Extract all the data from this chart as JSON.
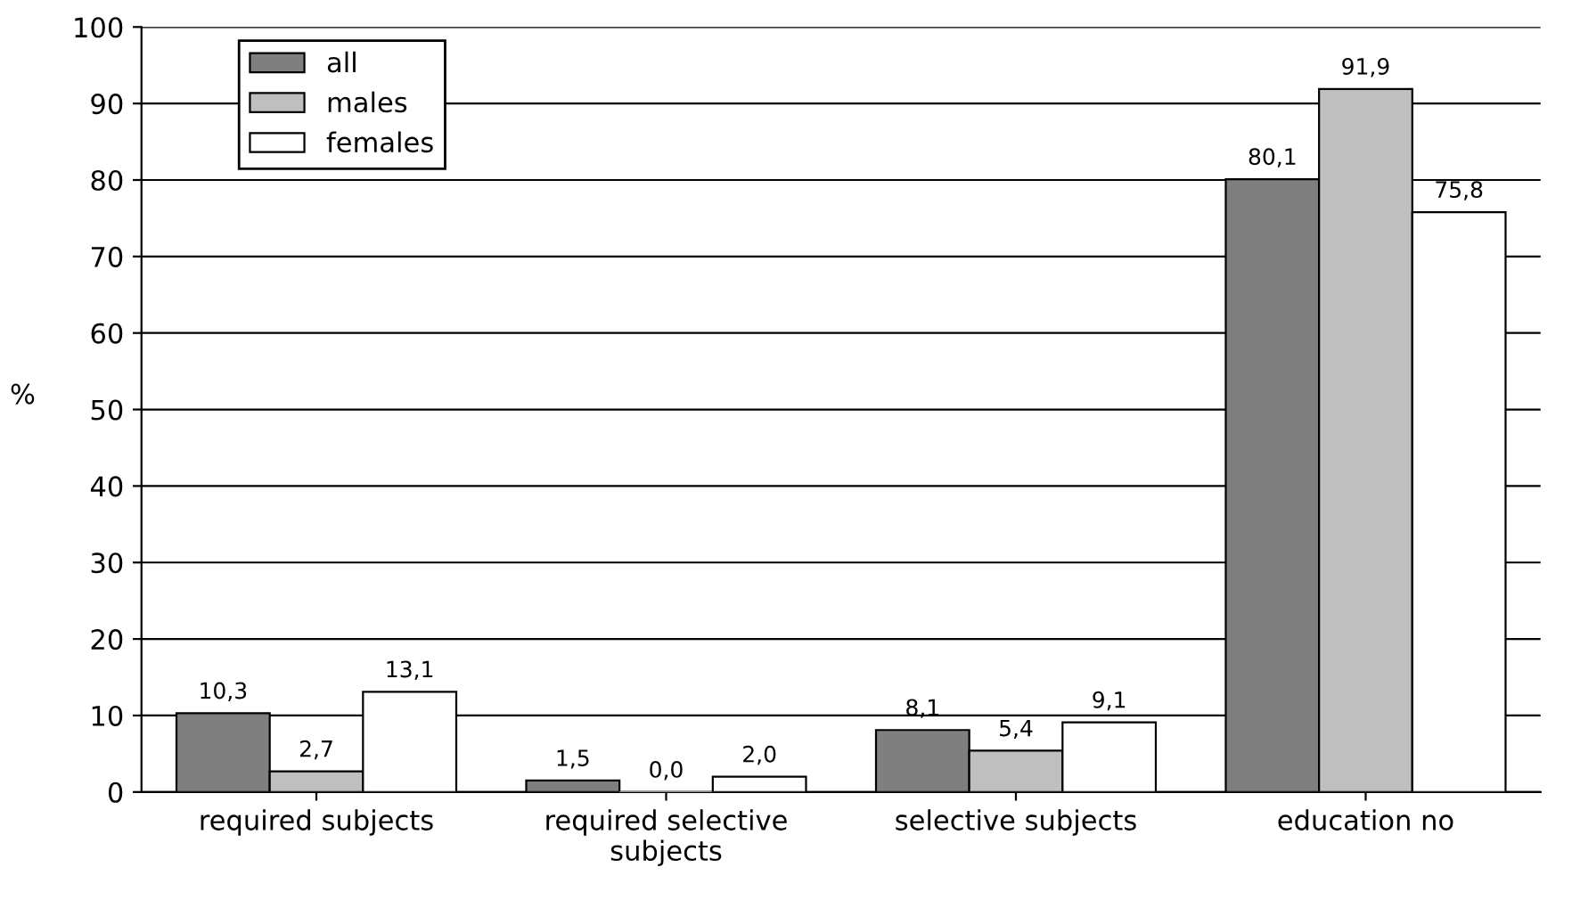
{
  "chart_data": {
    "type": "bar",
    "ylabel": "%",
    "categories": [
      "required subjects",
      "required selective\nsubjects",
      "selective subjects",
      "education no"
    ],
    "series": [
      {
        "name": "all",
        "color": "#7f7f7f",
        "values": [
          10.3,
          1.5,
          8.1,
          80.1
        ],
        "value_labels": [
          "10,3",
          "1,5",
          "8,1",
          "80,1"
        ]
      },
      {
        "name": "males",
        "color": "#bfbfbf",
        "values": [
          2.7,
          0.0,
          5.4,
          91.9
        ],
        "value_labels": [
          "2,7",
          "0,0",
          "5,4",
          "91,9"
        ]
      },
      {
        "name": "females",
        "color": "#ffffff",
        "values": [
          13.1,
          2.0,
          9.1,
          75.8
        ],
        "value_labels": [
          "13,1",
          "2,0",
          "9,1",
          "75,8"
        ]
      }
    ],
    "ylim": [
      0,
      100
    ],
    "yticks": [
      0,
      10,
      20,
      30,
      40,
      50,
      60,
      70,
      80,
      90,
      100
    ],
    "grid": "y",
    "legend": "top left"
  }
}
